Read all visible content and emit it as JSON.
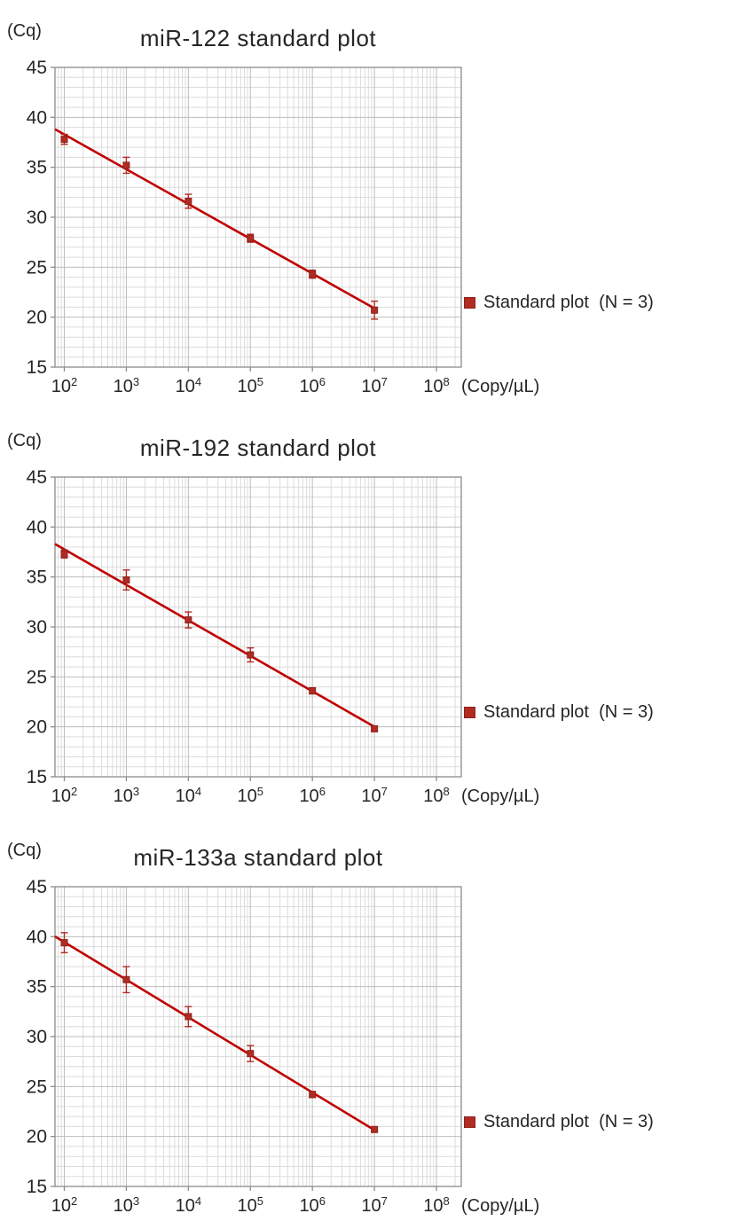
{
  "page": {
    "background": "#ffffff"
  },
  "legend": {
    "label": "Standard plot  (N = 3)"
  },
  "axes": {
    "y_unit": "(Cq)",
    "x_unit": "(Copy/µL)",
    "y_min": 15,
    "y_max": 45,
    "y_ticks": [
      15,
      20,
      25,
      30,
      35,
      40,
      45
    ],
    "x_tick_exponents": [
      2,
      3,
      4,
      5,
      6,
      7,
      8
    ],
    "x_log_min": 1.85,
    "x_log_max": 8.4,
    "grid": "on",
    "legend_position": "right"
  },
  "colors": {
    "series": "#b02c23",
    "series_edge": "#8c231c",
    "line": "#c00000",
    "grid_minor": "#dcdcdc",
    "grid_major": "#bdbdbd",
    "axis": "#8c8c8c",
    "text": "#262626"
  },
  "chart_data": [
    {
      "type": "scatter",
      "title": "miR-122 standard plot",
      "xlabel": "(Copy/µL)",
      "ylabel": "(Cq)",
      "ylim": [
        15,
        45
      ],
      "series_name": "Standard plot  (N = 3)",
      "x_copies": [
        100,
        1000,
        10000,
        100000,
        1000000,
        10000000
      ],
      "cq": [
        37.8,
        35.2,
        31.6,
        27.9,
        24.3,
        20.7
      ],
      "err": [
        0.5,
        0.8,
        0.7,
        0.4,
        0.4,
        0.9
      ]
    },
    {
      "type": "scatter",
      "title": "miR-192 standard plot",
      "xlabel": "(Copy/µL)",
      "ylabel": "(Cq)",
      "ylim": [
        15,
        45
      ],
      "series_name": "Standard plot  (N = 3)",
      "x_copies": [
        100,
        1000,
        10000,
        100000,
        1000000,
        10000000
      ],
      "cq": [
        37.3,
        34.7,
        30.7,
        27.2,
        23.6,
        19.8
      ],
      "err": [
        0.4,
        1.0,
        0.8,
        0.7,
        0.3,
        0.2
      ]
    },
    {
      "type": "scatter",
      "title": "miR-133a standard plot",
      "xlabel": "(Copy/µL)",
      "ylabel": "(Cq)",
      "ylim": [
        15,
        45
      ],
      "series_name": "Standard plot  (N = 3)",
      "x_copies": [
        100,
        1000,
        10000,
        100000,
        1000000,
        10000000
      ],
      "cq": [
        39.4,
        35.7,
        32.0,
        28.3,
        24.2,
        20.7
      ],
      "err": [
        1.0,
        1.3,
        1.0,
        0.8,
        0.3,
        0.2
      ]
    }
  ]
}
